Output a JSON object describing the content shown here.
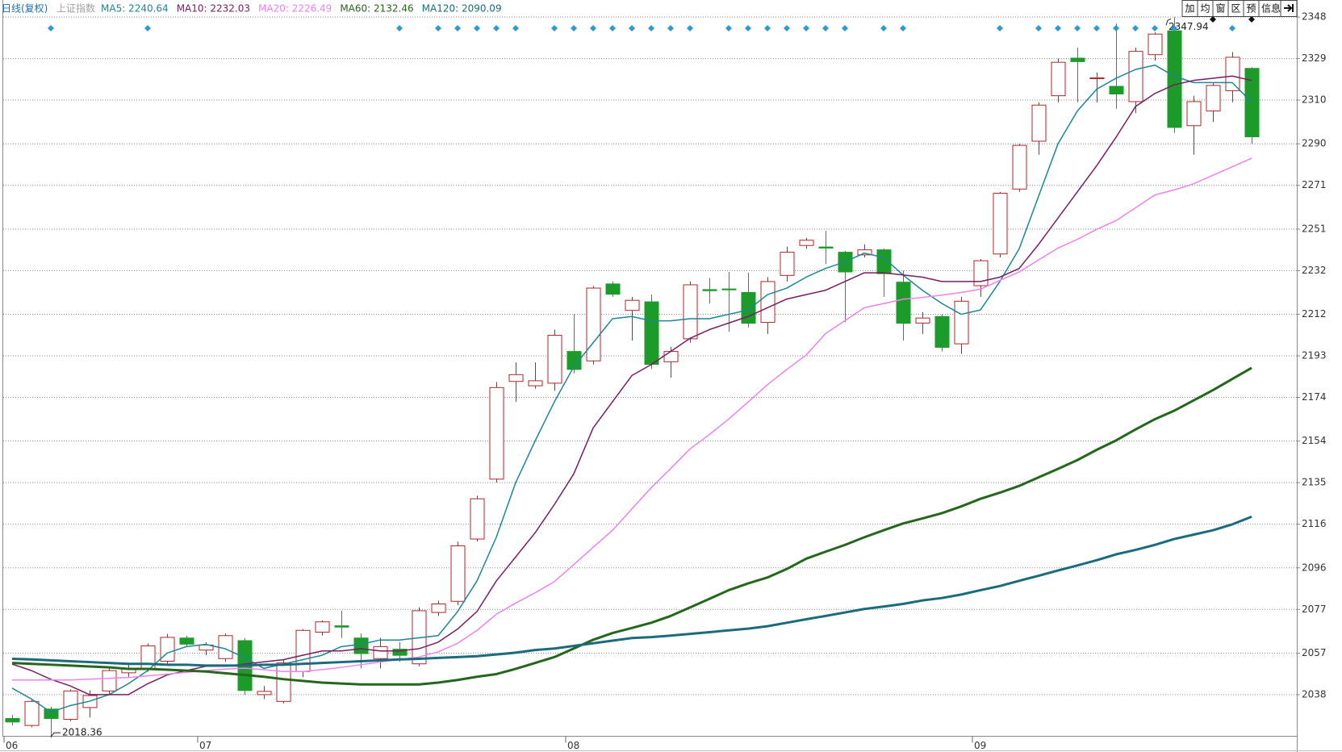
{
  "chart_data": {
    "type": "candlestick",
    "title": "日线(复权)",
    "subtitle": "上证指数",
    "toolbar": [
      "加",
      "均",
      "窗",
      "区",
      "预",
      "信息"
    ],
    "categories": [
      "06",
      null,
      null,
      null,
      null,
      null,
      null,
      null,
      null,
      null,
      "07",
      null,
      null,
      null,
      null,
      null,
      null,
      null,
      null,
      null,
      null,
      null,
      null,
      null,
      null,
      null,
      null,
      null,
      null,
      "08",
      null,
      null,
      null,
      null,
      null,
      null,
      null,
      null,
      null,
      null,
      null,
      null,
      null,
      null,
      null,
      null,
      null,
      null,
      null,
      null,
      "09",
      null,
      null,
      null,
      null,
      null,
      null,
      null,
      null,
      null,
      null,
      null,
      null,
      null,
      null
    ],
    "up_color": "#b0232a",
    "down_color": "#1c9a2a",
    "candles": {
      "open": [
        2027.1,
        2023.9,
        2031.4,
        2026.7,
        2032.1,
        2039.7,
        2048,
        2049.7,
        2053.3,
        2063.9,
        2058.4,
        2054.5,
        2062.7,
        2038,
        2034.9,
        2048.6,
        2066.6,
        2069.5,
        2063.9,
        2054.5,
        2058.8,
        2052.1,
        2075.6,
        2080.7,
        2109.2,
        2136.6,
        2181.3,
        2179.3,
        2180.5,
        2195,
        2190.7,
        2225.9,
        2213.8,
        2217.7,
        2190.3,
        2200.8,
        2223.3,
        2223.6,
        2222,
        2208.3,
        2229.8,
        2243.5,
        2242.8,
        2240.4,
        2239.2,
        2241.5,
        2226.7,
        2208,
        2211,
        2198.5,
        2225.1,
        2239.6,
        2269.3,
        2291.2,
        2312,
        2329.2,
        2319.8,
        2316.3,
        2309.3,
        2330.8,
        2341.7,
        2298.3,
        2305,
        2314.3,
        2324.5
      ],
      "high": [
        2028.7,
        2035.6,
        2032.5,
        2040.4,
        2040,
        2050.6,
        2052,
        2061.5,
        2065.8,
        2065,
        2062,
        2066,
        2063.9,
        2042,
        2054,
        2068,
        2072,
        2076.4,
        2066,
        2064,
        2062,
        2078,
        2081,
        2108,
        2129,
        2181,
        2190,
        2190,
        2205,
        2212,
        2225,
        2227,
        2220,
        2221,
        2197,
        2227,
        2228.6,
        2231.4,
        2231,
        2229,
        2243,
        2247,
        2250.2,
        2241,
        2244,
        2242,
        2232,
        2213,
        2212,
        2220,
        2237.3,
        2268,
        2290,
        2309,
        2329,
        2334,
        2322.6,
        2345,
        2334,
        2341,
        2347.94,
        2312,
        2318,
        2332,
        2325
      ],
      "low": [
        2023.9,
        2023.1,
        2018.36,
        2025.9,
        2027.5,
        2038.1,
        2046,
        2048.5,
        2052,
        2060,
        2056,
        2053,
        2038,
        2036,
        2034,
        2046,
        2065,
        2063.9,
        2050,
        2050,
        2053,
        2051,
        2074,
        2079,
        2108,
        2135,
        2172,
        2178,
        2177,
        2185,
        2189,
        2220,
        2200,
        2187,
        2183,
        2199,
        2216.9,
        2204,
        2206,
        2203,
        2227,
        2242,
        2235,
        2208.4,
        2238,
        2220,
        2200,
        2203,
        2195,
        2193.9,
        2220,
        2238,
        2268,
        2285,
        2309,
        2309,
        2308.9,
        2306,
        2304,
        2328,
        2295,
        2285,
        2300,
        2309,
        2290
      ],
      "close": [
        2025.5,
        2034.9,
        2027.1,
        2039.7,
        2037.6,
        2049.0,
        2050,
        2060.3,
        2064.2,
        2061.1,
        2060.7,
        2065,
        2039.9,
        2039.5,
        2052.5,
        2067.4,
        2071.3,
        2068.9,
        2056.8,
        2060,
        2056,
        2076.4,
        2079.5,
        2106.1,
        2127.6,
        2178.5,
        2184.4,
        2181.6,
        2202.4,
        2186.8,
        2224,
        2221.2,
        2218.4,
        2189.1,
        2195,
        2225.5,
        2222.8,
        2223.2,
        2207.9,
        2227,
        2240.4,
        2245.9,
        2242.3,
        2231.4,
        2241.5,
        2230.6,
        2207.9,
        2210.3,
        2196.9,
        2218,
        2236.5,
        2267.4,
        2289.3,
        2307.7,
        2327.3,
        2327.6,
        2320.2,
        2312.8,
        2332.3,
        2340.2,
        2297.5,
        2309.3,
        2316.7,
        2329.6,
        2293.2
      ]
    },
    "series": [
      {
        "name": "MA5: 2240.64",
        "color": "#1b8696",
        "line_width": 1.5,
        "values": [
          2041,
          2036,
          2030,
          2033,
          2035,
          2038,
          2043,
          2049,
          2057,
          2060,
          2061,
          2059,
          2055,
          2050,
          2052,
          2054,
          2056,
          2060,
          2061,
          2063,
          2063,
          2064,
          2065,
          2076,
          2090,
          2110,
          2135,
          2154,
          2172,
          2188,
          2199,
          2210,
          2211,
          2209,
          2209,
          2210,
          2210,
          2212,
          2214,
          2221,
          2224,
          2229,
          2233,
          2236,
          2240,
          2238,
          2230,
          2223,
          2217,
          2212,
          2214,
          2227,
          2242,
          2266,
          2290,
          2305,
          2315,
          2320,
          2324,
          2326,
          2321,
          2318,
          2318,
          2318,
          2309
        ]
      },
      {
        "name": "MA10: 2232.03",
        "color": "#7a1c62",
        "line_width": 1.5,
        "values": [
          2052,
          2049,
          2045,
          2042,
          2038,
          2038,
          2038,
          2043,
          2047,
          2049,
          2051,
          2051,
          2052,
          2053,
          2054,
          2056,
          2058,
          2058,
          2059,
          2058,
          2058,
          2059,
          2062,
          2068,
          2076,
          2090,
          2101,
          2112,
          2125,
          2139,
          2160,
          2172,
          2184,
          2189,
          2195,
          2201,
          2205,
          2208,
          2211,
          2215,
          2219,
          2221,
          2223,
          2227,
          2231,
          2231,
          2230,
          2229,
          2227,
          2227,
          2227,
          2229,
          2233,
          2244,
          2256,
          2268,
          2280,
          2293,
          2307,
          2313,
          2317,
          2319,
          2320,
          2321,
          2319
        ]
      },
      {
        "name": "MA20: 2226.49",
        "color": "#ee82ee",
        "line_width": 1.5,
        "values": [
          2044.7,
          2044.7,
          2044.7,
          2044.7,
          2045.1,
          2045.5,
          2045.8,
          2046.6,
          2047.4,
          2048.2,
          2049.0,
          2049.7,
          2050.1,
          2049.4,
          2048.6,
          2048.6,
          2049.4,
          2050.5,
          2051.7,
          2052.9,
          2054.1,
          2055.2,
          2057.6,
          2061.5,
          2067.4,
          2074.8,
          2079.9,
          2084.6,
          2089.7,
          2097.5,
          2105.4,
          2113.2,
          2123.0,
          2132.7,
          2141.4,
          2150.4,
          2157.0,
          2164.1,
          2171.9,
          2179.8,
          2186.8,
          2193.4,
          2203.2,
          2209.1,
          2215.0,
          2216.9,
          2218.9,
          2219.7,
          2220.8,
          2222.0,
          2223.5,
          2227.5,
          2231.4,
          2236.9,
          2242.3,
          2246.3,
          2250.9,
          2254.9,
          2260.7,
          2266.6,
          2268.9,
          2271.7,
          2275.6,
          2279.5,
          2283.4
        ]
      },
      {
        "name": "MA60: 2132.46",
        "color": "#24671c",
        "line_width": 3,
        "values": [
          2052.5,
          2052.1,
          2051.7,
          2051.3,
          2050.9,
          2050.5,
          2049.8,
          2049.8,
          2049.4,
          2049.0,
          2048.6,
          2047.8,
          2047.0,
          2046.2,
          2045.1,
          2044.3,
          2043.5,
          2043.1,
          2042.7,
          2042.7,
          2042.7,
          2042.7,
          2043.5,
          2044.7,
          2046.2,
          2047.4,
          2049.8,
          2052.5,
          2055.2,
          2059.1,
          2063.1,
          2066.2,
          2068.5,
          2070.9,
          2074.0,
          2077.9,
          2081.8,
          2085.8,
          2088.9,
          2091.6,
          2095.5,
          2100.2,
          2103.4,
          2106.5,
          2110.0,
          2113.2,
          2116.3,
          2118.6,
          2121.0,
          2124.1,
          2127.6,
          2130.4,
          2133.5,
          2137.4,
          2141.3,
          2145.3,
          2150.0,
          2154.3,
          2159.3,
          2164.0,
          2167.9,
          2172.6,
          2177.3,
          2182.4,
          2187.5
        ]
      },
      {
        "name": "MA120: 2090.09",
        "color": "#1a6b7e",
        "line_width": 3,
        "values": [
          2054.4,
          2054.1,
          2053.7,
          2053.3,
          2052.9,
          2052.5,
          2052.1,
          2052.1,
          2051.7,
          2051.7,
          2051.3,
          2051.3,
          2051.3,
          2051.7,
          2051.7,
          2052.1,
          2052.5,
          2052.9,
          2053.3,
          2053.7,
          2054.1,
          2054.4,
          2054.8,
          2055.2,
          2055.6,
          2056.4,
          2057.2,
          2058.4,
          2059.1,
          2060.3,
          2061.5,
          2062.7,
          2063.9,
          2064.3,
          2065.0,
          2065.8,
          2066.6,
          2067.4,
          2068.2,
          2069.3,
          2070.9,
          2072.5,
          2074.0,
          2075.6,
          2077.2,
          2078.3,
          2079.5,
          2081.1,
          2082.2,
          2083.8,
          2085.8,
          2087.7,
          2090.1,
          2092.4,
          2094.8,
          2097.1,
          2099.5,
          2102.2,
          2104.2,
          2106.5,
          2109.2,
          2111.2,
          2113.2,
          2115.9,
          2119.4
        ]
      }
    ],
    "signals_blue": [
      2,
      7,
      20,
      22,
      23,
      24,
      25,
      26,
      28,
      29,
      30,
      31,
      32,
      33,
      34,
      35,
      37,
      38,
      39,
      40,
      41,
      42,
      43,
      45,
      46,
      51,
      53,
      54,
      55,
      56,
      57,
      58,
      59,
      60,
      63
    ],
    "signals_black": [
      62,
      64
    ],
    "ylim": [
      2019,
      2349
    ],
    "yticks": [
      2348,
      2329,
      2310,
      2290,
      2271,
      2251,
      2232,
      2212,
      2193,
      2174,
      2154,
      2135,
      2116,
      2096,
      2077,
      2057,
      2038
    ],
    "grid": true
  }
}
